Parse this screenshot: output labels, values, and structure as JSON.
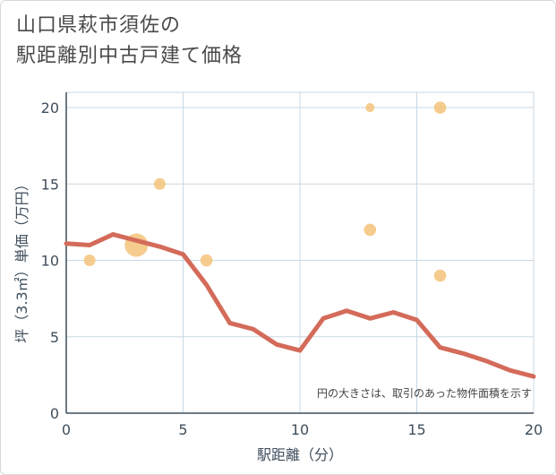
{
  "title_line1": "山口県萩市須佐の",
  "title_line2": "駅距離別中古戸建て価格",
  "chart_data": {
    "type": "scatter",
    "title": "山口県萩市須佐の駅距離別中古戸建て価格",
    "xlabel": "駅距離（分）",
    "ylabel": "坪（3.3㎡）単価（万円）",
    "xlim": [
      0,
      20
    ],
    "ylim": [
      0,
      21
    ],
    "x_ticks": [
      0,
      5,
      10,
      15,
      20
    ],
    "y_ticks": [
      0,
      5,
      10,
      15,
      20
    ],
    "grid": true,
    "note": "円の大きさは、取引のあった物件面積を示す",
    "bubbles": [
      {
        "x": 1,
        "y": 10,
        "size": 1
      },
      {
        "x": 3,
        "y": 11,
        "size": 4
      },
      {
        "x": 4,
        "y": 15,
        "size": 1
      },
      {
        "x": 6,
        "y": 10,
        "size": 1.1
      },
      {
        "x": 13,
        "y": 20,
        "size": 0.6
      },
      {
        "x": 13,
        "y": 12,
        "size": 1.1
      },
      {
        "x": 16,
        "y": 20,
        "size": 1.1
      },
      {
        "x": 16,
        "y": 9,
        "size": 1.1
      }
    ],
    "trend": {
      "x": [
        0,
        1,
        2,
        3,
        4,
        5,
        6,
        7,
        8,
        9,
        10,
        11,
        12,
        13,
        14,
        15,
        16,
        17,
        18,
        19,
        20
      ],
      "y": [
        11.1,
        11.0,
        11.7,
        11.3,
        10.9,
        10.4,
        8.4,
        5.9,
        5.5,
        4.5,
        4.1,
        6.2,
        6.7,
        6.2,
        6.6,
        6.1,
        4.3,
        3.9,
        3.4,
        2.8,
        2.4
      ]
    },
    "colors": {
      "bubble": "#f5c37a",
      "trend": "#d46b5a",
      "grid": "#c8d8e4",
      "axis": "#3f4e5c"
    }
  }
}
